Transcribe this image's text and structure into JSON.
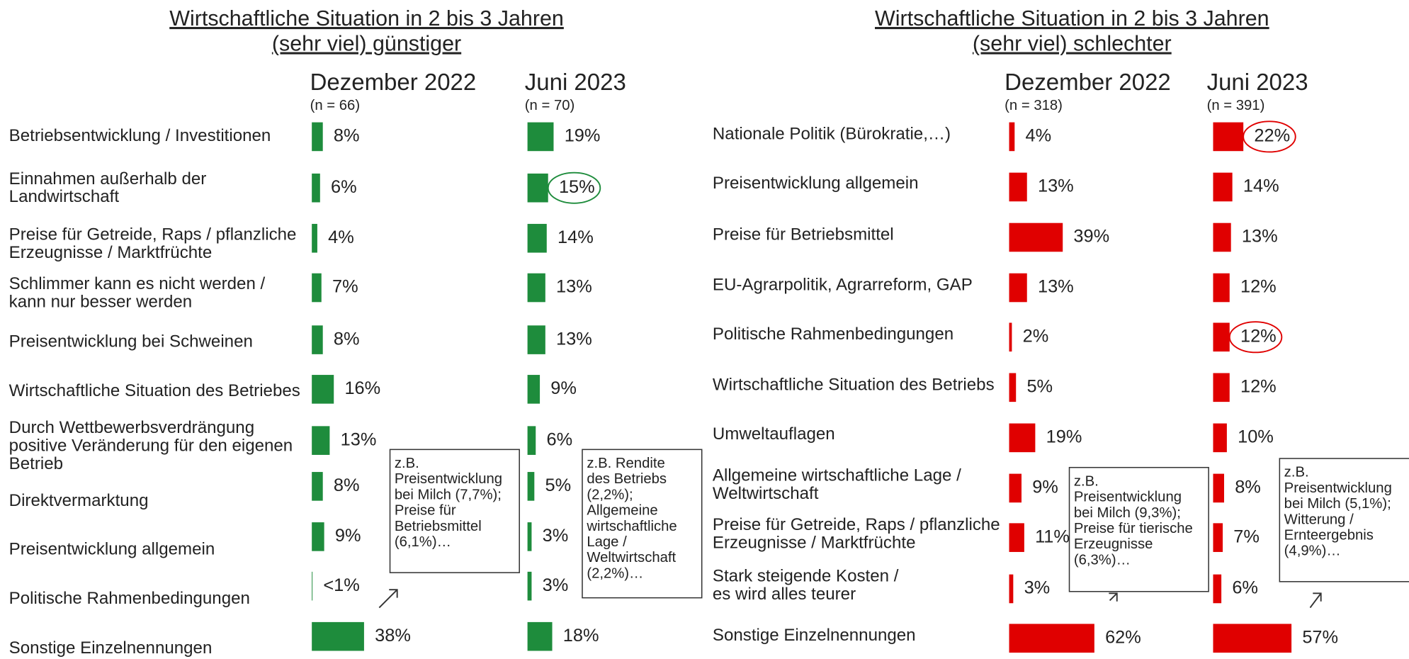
{
  "chart_data": [
    {
      "type": "bar",
      "title": [
        "Wirtschaftliche Situation in 2 bis 3 Jahren",
        "(sehr viel) günstiger"
      ],
      "categories": [
        "Betriebsentwicklung / Investitionen",
        "Einnahmen außerhalb der\nLandwirtschaft",
        "Preise für Getreide, Raps / pflanzliche\nErzeugnisse / Marktfrüchte",
        "Schlimmer kann es nicht werden /\nkann nur besser werden",
        "Preisentwicklung bei Schweinen",
        "Wirtschaftliche Situation des Betriebes",
        "Durch Wettbewerbsverdrängung\npositive Veränderung für den eigenen\nBetrieb",
        "Direktvermarktung",
        "Preisentwicklung allgemein",
        "Politische Rahmenbedingungen",
        "Sonstige Einzelnennungen"
      ],
      "series": [
        {
          "name": "Dezember 2022",
          "sample": "(n = 66)",
          "color": "#1e8c3c",
          "values": [
            8,
            6,
            4,
            7,
            8,
            16,
            13,
            8,
            9,
            0.5,
            38
          ],
          "value_labels": [
            "8%",
            "6%",
            "4%",
            "7%",
            "8%",
            "16%",
            "13%",
            "8%",
            "9%",
            "<1%",
            "38%"
          ],
          "circled": []
        },
        {
          "name": "Juni 2023",
          "sample": "(n = 70)",
          "color": "#1e8c3c",
          "values": [
            19,
            15,
            14,
            13,
            13,
            9,
            6,
            5,
            3,
            3,
            18
          ],
          "value_labels": [
            "19%",
            "15%",
            "14%",
            "13%",
            "13%",
            "9%",
            "6%",
            "5%",
            "3%",
            "3%",
            "18%"
          ],
          "circled": [
            1
          ]
        }
      ],
      "annotations": [
        {
          "lines": [
            "z.B.",
            "Preisentwicklung",
            "bei Milch (7,7%);",
            "Preise für",
            "Betriebsmittel",
            "(6,1%)…"
          ]
        },
        {
          "lines": [
            "z.B. Rendite",
            "des Betriebs",
            "(2,2%);",
            "Allgemeine",
            "wirtschaftliche",
            "Lage /",
            "Weltwirtschaft",
            "(2,2%)…"
          ]
        }
      ]
    },
    {
      "type": "bar",
      "title": [
        "Wirtschaftliche Situation in 2 bis 3 Jahren",
        "(sehr viel) schlechter"
      ],
      "categories": [
        "Nationale Politik (Bürokratie,…)",
        "Preisentwicklung allgemein",
        "Preise für Betriebsmittel",
        "EU-Agrarpolitik, Agrarreform, GAP",
        "Politische Rahmenbedingungen",
        "Wirtschaftliche Situation des Betriebs",
        "Umweltauflagen",
        "Allgemeine wirtschaftliche Lage /\nWeltwirtschaft",
        "Preise für Getreide, Raps / pflanzliche\nErzeugnisse / Marktfrüchte",
        "Stark steigende Kosten /\nes wird alles teurer",
        "Sonstige Einzelnennungen"
      ],
      "series": [
        {
          "name": "Dezember 2022",
          "sample": "(n = 318)",
          "color": "#e00000",
          "values": [
            4,
            13,
            39,
            13,
            2,
            5,
            19,
            9,
            11,
            3,
            62
          ],
          "value_labels": [
            "4%",
            "13%",
            "39%",
            "13%",
            "2%",
            "5%",
            "19%",
            "9%",
            "11%",
            "3%",
            "62%"
          ],
          "circled": []
        },
        {
          "name": "Juni 2023",
          "sample": "(n = 391)",
          "color": "#e00000",
          "values": [
            22,
            14,
            13,
            12,
            12,
            12,
            10,
            8,
            7,
            6,
            57
          ],
          "value_labels": [
            "22%",
            "14%",
            "13%",
            "12%",
            "12%",
            "12%",
            "10%",
            "8%",
            "7%",
            "6%",
            "57%"
          ],
          "circled": [
            0,
            4
          ]
        }
      ],
      "annotations": [
        {
          "lines": [
            "z.B.",
            "Preisentwicklung",
            "bei Milch (9,3%);",
            "Preise für tierische",
            "Erzeugnisse",
            "(6,3%)…"
          ]
        },
        {
          "lines": [
            "z.B.",
            "Preisentwicklung",
            "bei Milch (5,1%);",
            "Witterung /",
            "Ernteergebnis",
            "(4,9%)…"
          ]
        }
      ]
    }
  ]
}
